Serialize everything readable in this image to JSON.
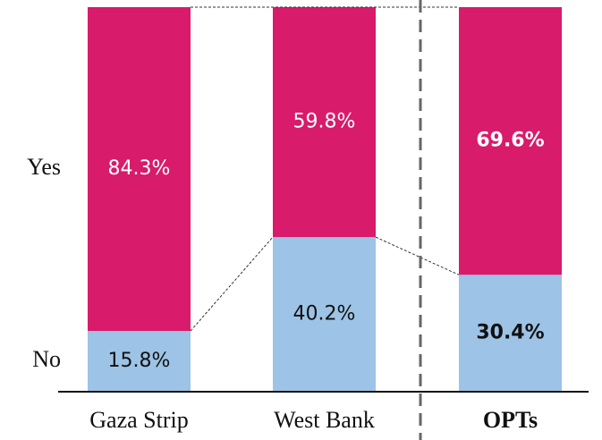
{
  "chart_data": {
    "type": "stacked_bar_percent",
    "categories": [
      "Gaza Strip",
      "West Bank",
      "OPTs"
    ],
    "series": [
      {
        "name": "No",
        "color": "#9dc3e6",
        "values": [
          15.8,
          40.2,
          30.4
        ],
        "value_labels": [
          "15.8%",
          "40.2%",
          "30.4%"
        ]
      },
      {
        "name": "Yes",
        "color": "#d81b6a",
        "values": [
          84.3,
          59.8,
          69.6
        ],
        "value_labels": [
          "84.3%",
          "59.8%",
          "69.6%"
        ]
      }
    ],
    "ylim": [
      0,
      100
    ]
  }
}
